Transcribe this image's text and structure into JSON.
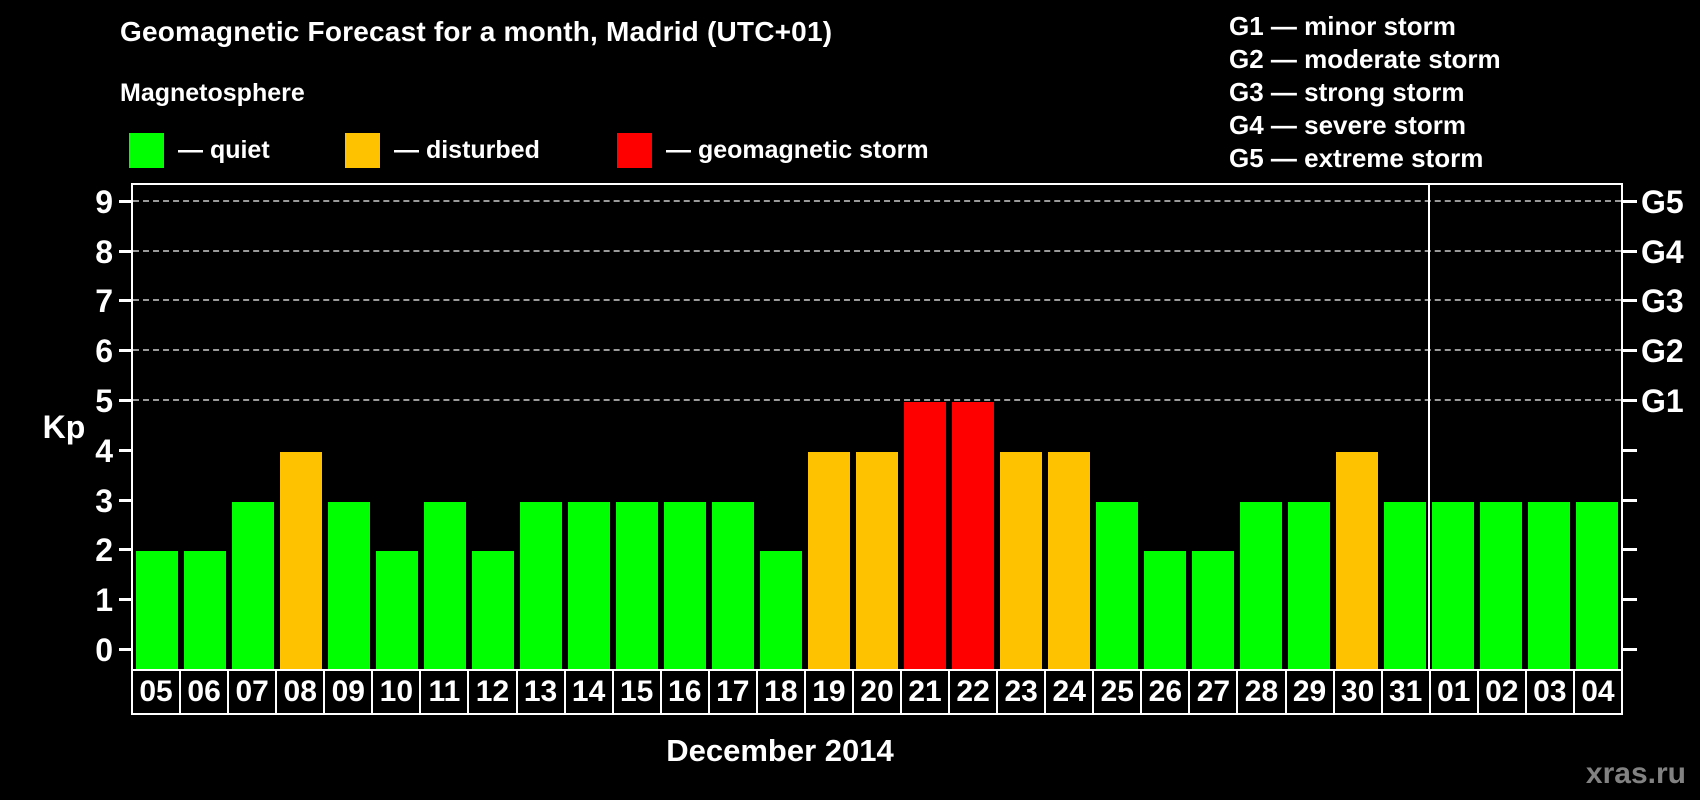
{
  "header": {
    "title": "Geomagnetic Forecast for a month, Madrid (UTC+01)",
    "subtitle": "Magnetosphere"
  },
  "legend": {
    "items": [
      {
        "label": "— quiet",
        "status": "quiet",
        "color": "#00ff00"
      },
      {
        "label": "— disturbed",
        "status": "disturbed",
        "color": "#ffc200"
      },
      {
        "label": "— geomagnetic storm",
        "status": "storm",
        "color": "#ff0000"
      }
    ]
  },
  "storm_scale": {
    "items": [
      {
        "label": "G1 — minor storm"
      },
      {
        "label": "G2 — moderate storm"
      },
      {
        "label": "G3 — strong storm"
      },
      {
        "label": "G4 — severe storm"
      },
      {
        "label": "G5 — extreme storm"
      }
    ]
  },
  "chart_data": {
    "type": "bar",
    "title": "Geomagnetic Forecast for a month, Madrid (UTC+01)",
    "xlabel": "December 2014",
    "ylabel": "Kp",
    "ylim": [
      0,
      9
    ],
    "yticks": [
      0,
      1,
      2,
      3,
      4,
      5,
      6,
      7,
      8,
      9
    ],
    "kp_gridlines": [
      5,
      6,
      7,
      8,
      9
    ],
    "grid_style": "dashed horizontal lines at Kp 5-9 only",
    "legend_position": "top",
    "right_axis_labels": [
      {
        "kp": 5,
        "label": "G1"
      },
      {
        "kp": 6,
        "label": "G2"
      },
      {
        "kp": 7,
        "label": "G3"
      },
      {
        "kp": 8,
        "label": "G4"
      },
      {
        "kp": 9,
        "label": "G5"
      }
    ],
    "categories": [
      "05",
      "06",
      "07",
      "08",
      "09",
      "10",
      "11",
      "12",
      "13",
      "14",
      "15",
      "16",
      "17",
      "18",
      "19",
      "20",
      "21",
      "22",
      "23",
      "24",
      "25",
      "26",
      "27",
      "28",
      "29",
      "30",
      "31",
      "01",
      "02",
      "03",
      "04"
    ],
    "values": [
      2,
      2,
      3,
      4,
      3,
      2,
      3,
      2,
      3,
      3,
      3,
      3,
      3,
      2,
      4,
      4,
      5,
      5,
      4,
      4,
      3,
      2,
      2,
      3,
      3,
      4,
      3,
      3,
      3,
      3,
      3
    ],
    "statuses": [
      "quiet",
      "quiet",
      "quiet",
      "disturbed",
      "quiet",
      "quiet",
      "quiet",
      "quiet",
      "quiet",
      "quiet",
      "quiet",
      "quiet",
      "quiet",
      "quiet",
      "disturbed",
      "disturbed",
      "storm",
      "storm",
      "disturbed",
      "disturbed",
      "quiet",
      "quiet",
      "quiet",
      "quiet",
      "quiet",
      "disturbed",
      "quiet",
      "quiet",
      "quiet",
      "quiet",
      "quiet"
    ],
    "status_colors": {
      "quiet": "#00ff00",
      "disturbed": "#ffc200",
      "storm": "#ff0000"
    },
    "december_day_count": 27
  },
  "watermark": "xras.ru"
}
